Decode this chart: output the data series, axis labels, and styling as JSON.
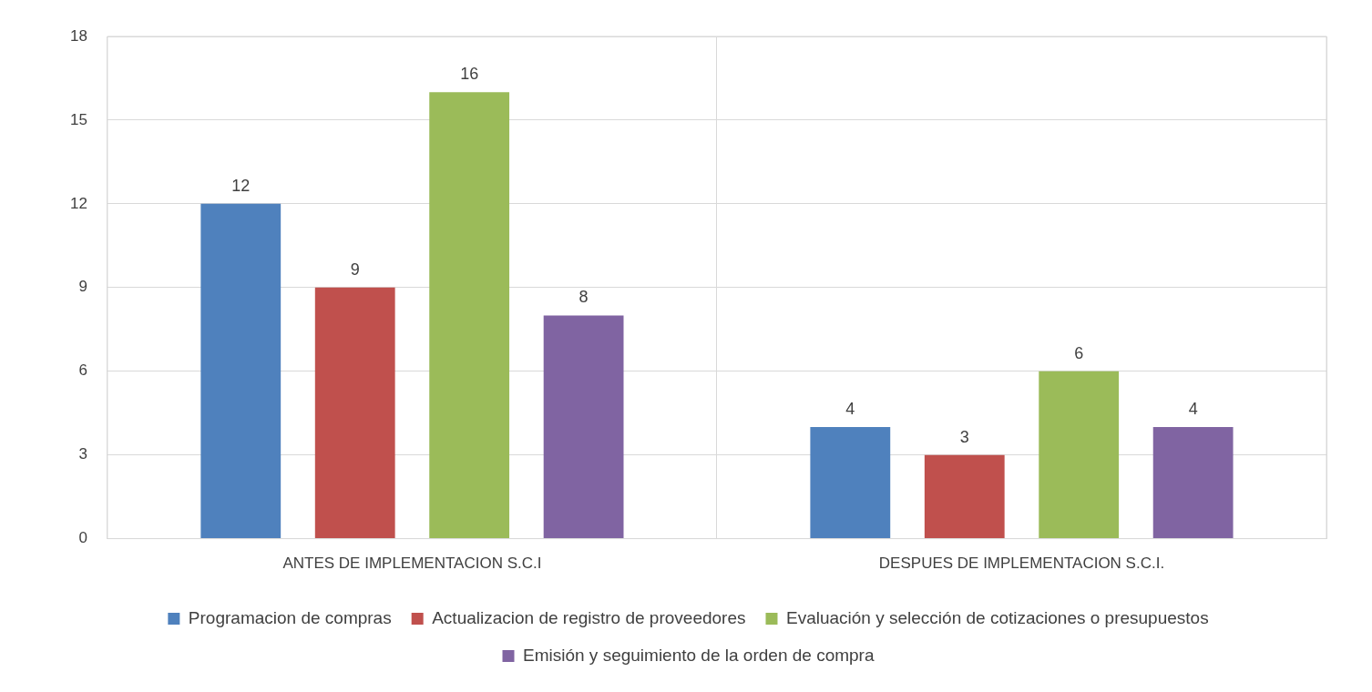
{
  "chart_data": {
    "type": "bar",
    "categories": [
      "ANTES DE IMPLEMENTACION S.C.I",
      "DESPUES DE IMPLEMENTACION S.C.I."
    ],
    "series": [
      {
        "name": "Programacion de compras",
        "color": "#4f81bd",
        "values": [
          12,
          4
        ]
      },
      {
        "name": "Actualizacion de registro de proveedores",
        "color": "#c0504d",
        "values": [
          9,
          3
        ]
      },
      {
        "name": "Evaluación y selección de cotizaciones o presupuestos",
        "color": "#9bbb59",
        "values": [
          16,
          6
        ]
      },
      {
        "name": "Emisión y seguimiento de la orden de compra",
        "color": "#8064a2",
        "values": [
          8,
          4
        ]
      }
    ],
    "ylim": [
      0,
      18
    ],
    "yticks": [
      0,
      3,
      6,
      9,
      12,
      15,
      18
    ],
    "grid": true,
    "legend": "bottom",
    "data_labels": true
  }
}
